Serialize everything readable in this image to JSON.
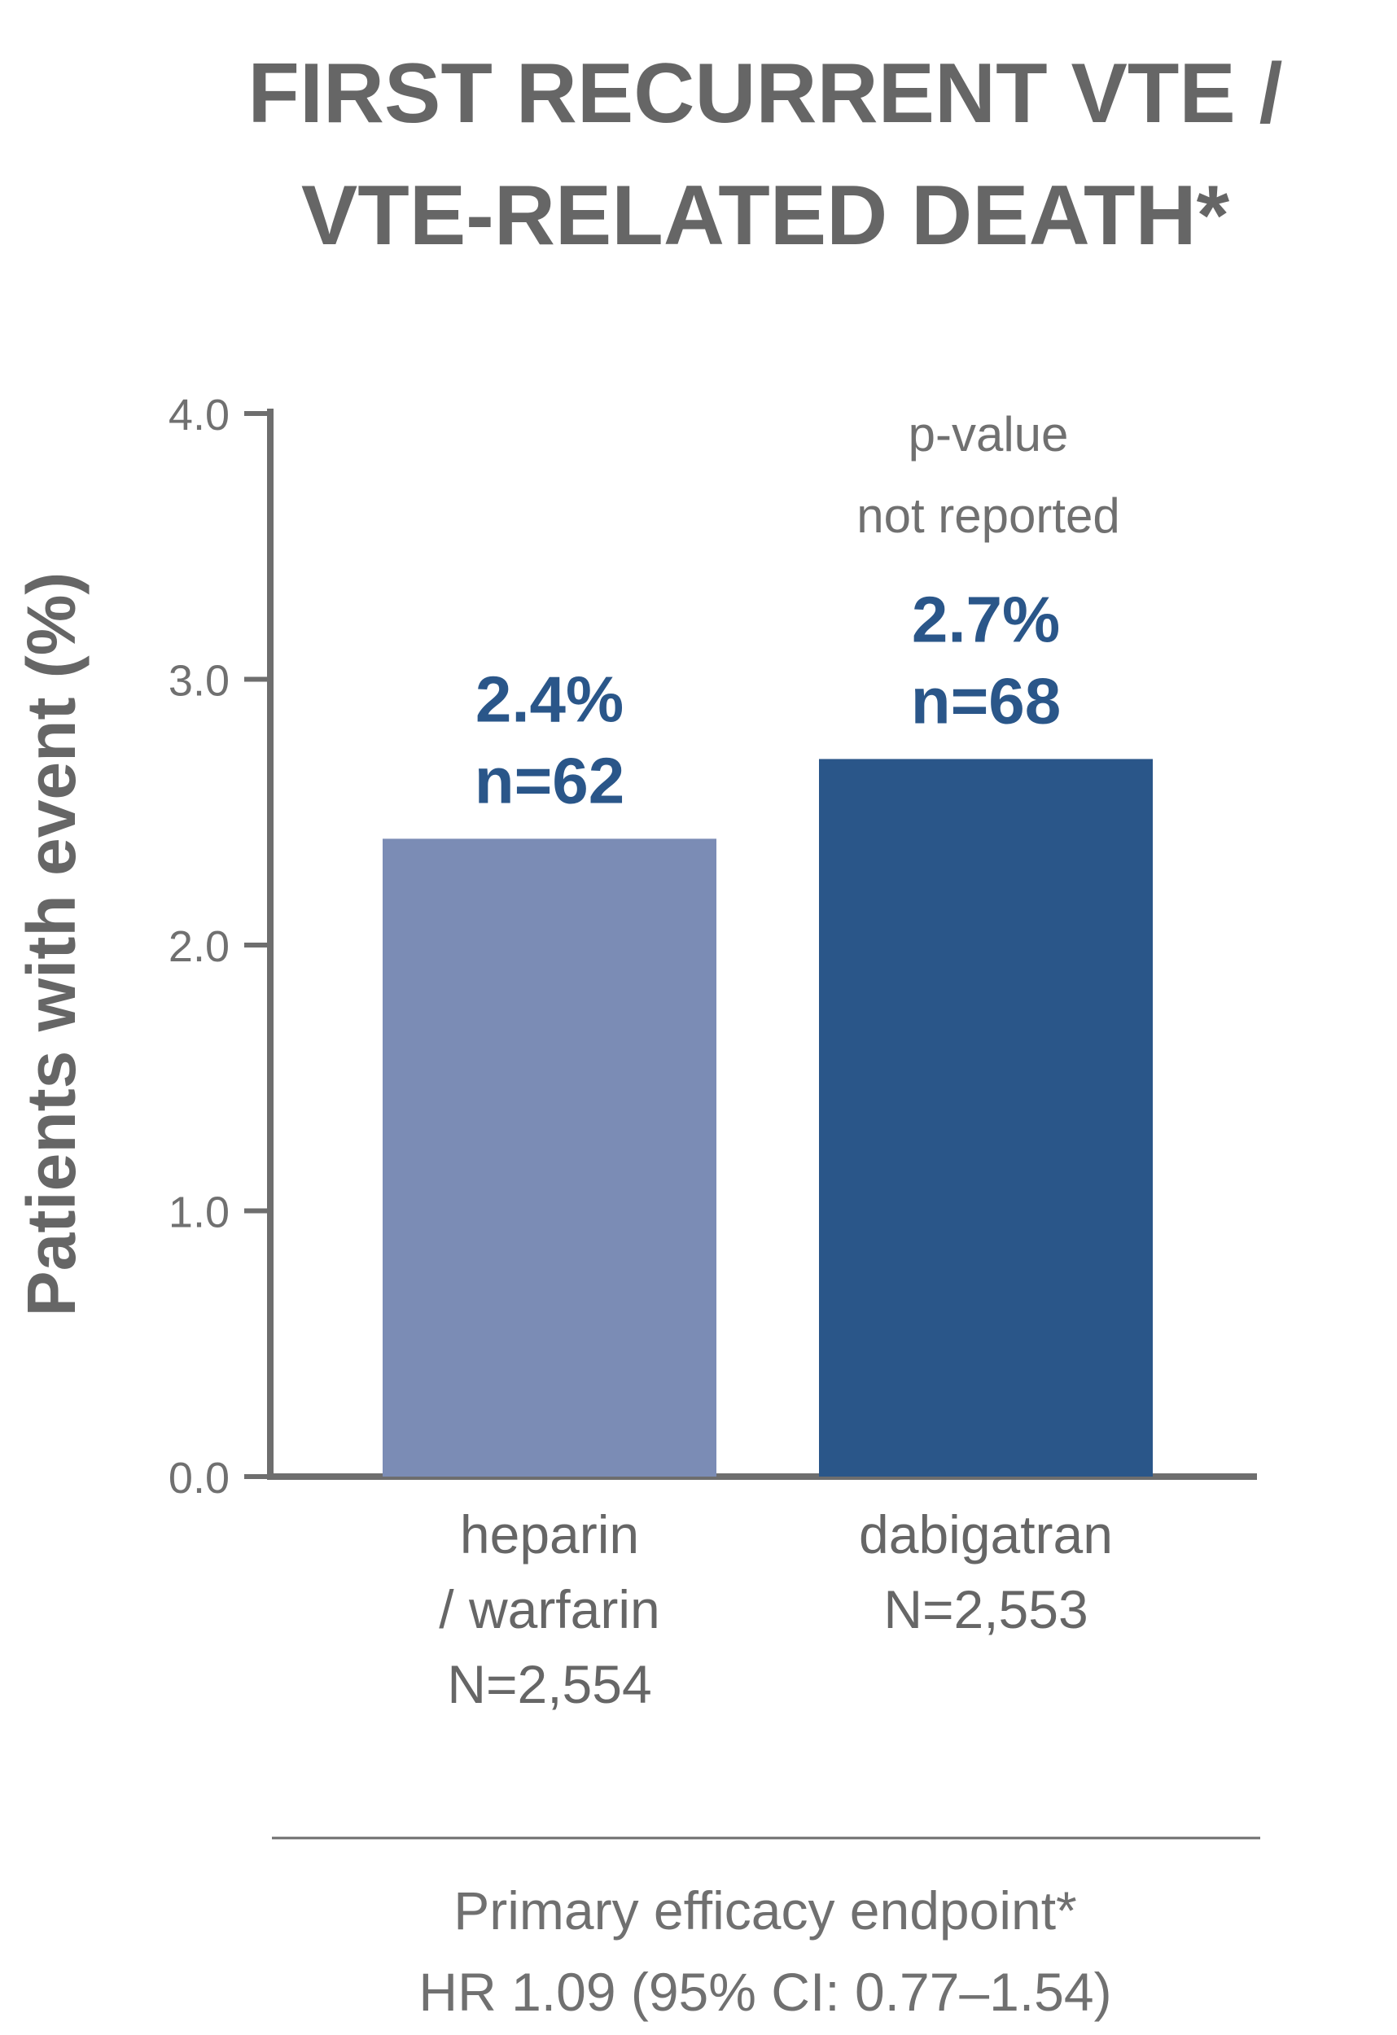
{
  "chart_data": {
    "type": "bar",
    "title": [
      "FIRST RECURRENT VTE /",
      "VTE-RELATED DEATH*"
    ],
    "ylabel": "Patients with event (%)",
    "ylim": [
      0,
      4.0
    ],
    "yticks": [
      "0.0",
      "1.0",
      "2.0",
      "3.0",
      "4.0"
    ],
    "ytick_values": [
      0,
      1,
      2,
      3,
      4
    ],
    "grid": false,
    "categories": [
      [
        "heparin",
        "/ warfarin",
        "N=2,554"
      ],
      [
        "dabigatran",
        "N=2,553"
      ]
    ],
    "values": [
      2.4,
      2.7
    ],
    "data_labels": [
      [
        "2.4%",
        "n=62"
      ],
      [
        "2.7%",
        "n=68"
      ]
    ],
    "bar_colors": [
      "#7b8cb5",
      "#2a5689"
    ],
    "label_color": "#2a5689",
    "annotation": [
      "p-value",
      "not reported"
    ],
    "footnote": [
      "Primary efficacy endpoint*",
      "HR 1.09 (95% CI: 0.77–1.54)"
    ]
  },
  "colors": {
    "text_gray": "#666666",
    "axis_gray": "#6e6e6e"
  }
}
